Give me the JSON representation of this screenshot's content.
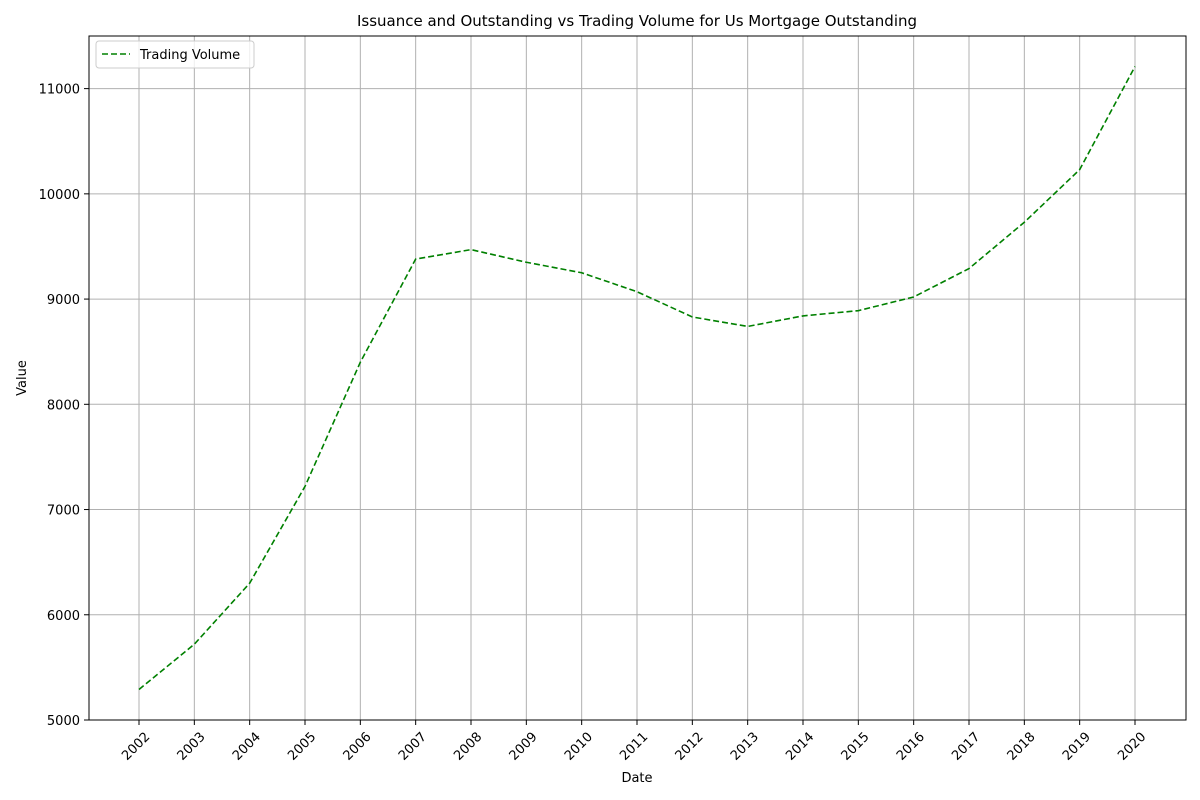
{
  "chart_data": {
    "type": "line",
    "title": "Issuance and Outstanding vs Trading Volume for Us Mortgage Outstanding",
    "xlabel": "Date",
    "ylabel": "Value",
    "ylim": [
      5000,
      11500
    ],
    "yticks": [
      5000,
      6000,
      7000,
      8000,
      9000,
      10000,
      11000
    ],
    "grid": true,
    "legend_position": "top-left",
    "categories": [
      "2002",
      "2003",
      "2004",
      "2005",
      "2006",
      "2007",
      "2008",
      "2009",
      "2010",
      "2011",
      "2012",
      "2013",
      "2014",
      "2015",
      "2016",
      "2017",
      "2018",
      "2019",
      "2020"
    ],
    "series": [
      {
        "name": "Trading Volume",
        "color": "#008000",
        "line_style": "dashed",
        "values": [
          5290,
          5720,
          6300,
          7220,
          8400,
          9380,
          9470,
          9350,
          9250,
          9070,
          8830,
          8740,
          8840,
          8890,
          9020,
          9290,
          9730,
          10230,
          11210
        ]
      }
    ]
  }
}
